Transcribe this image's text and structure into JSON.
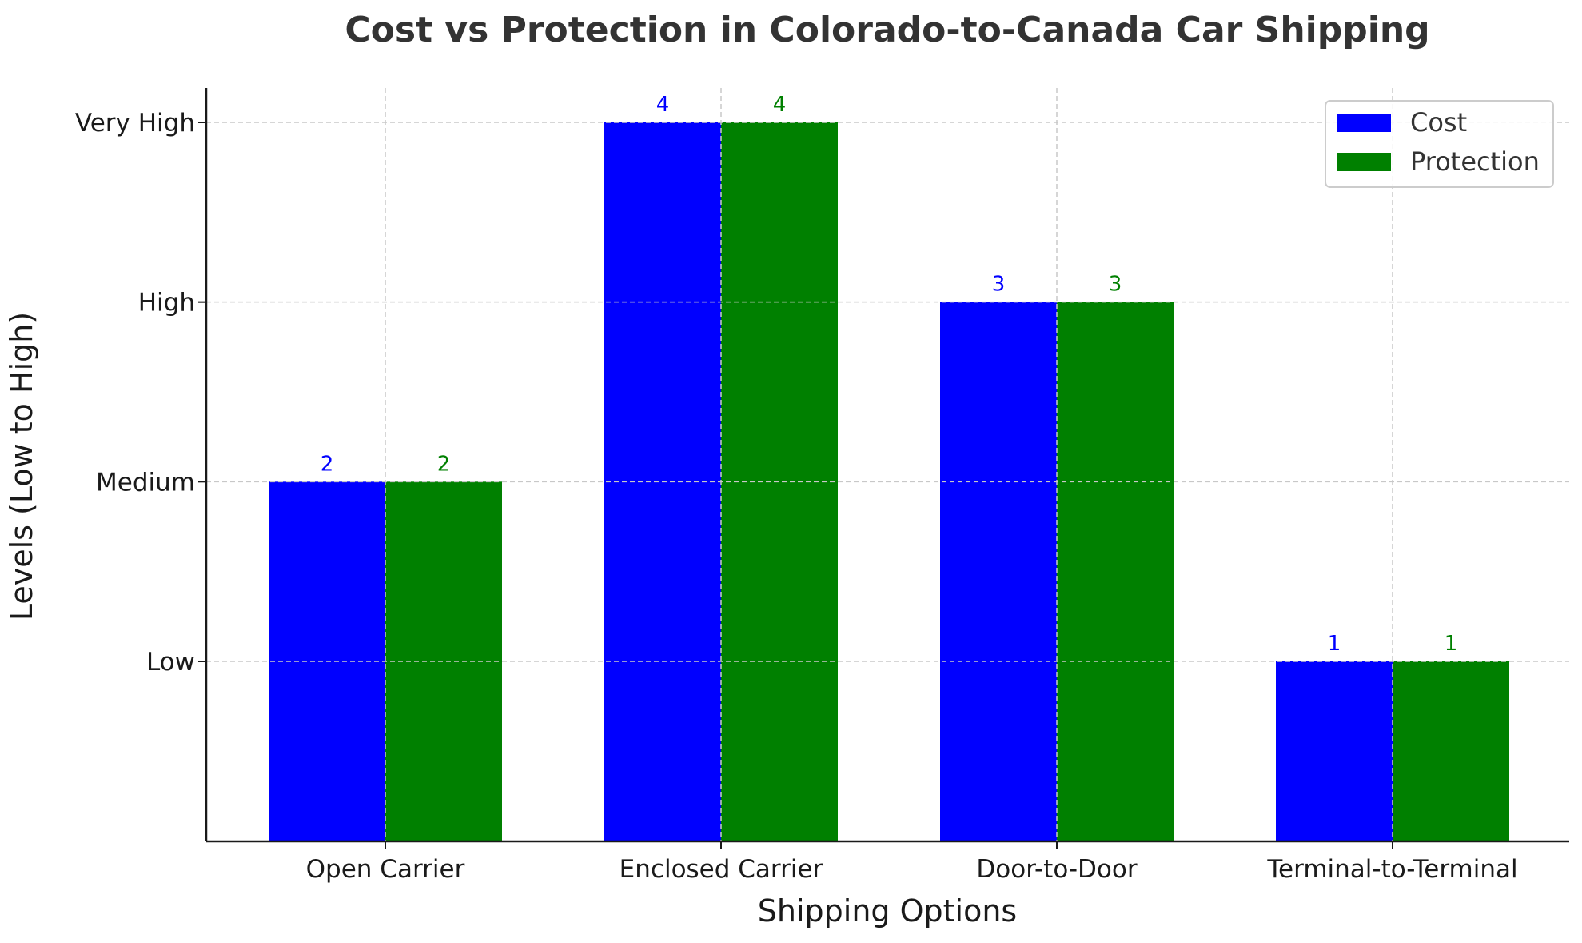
{
  "chart_data": {
    "type": "bar",
    "title": "Cost vs Protection in Colorado-to-Canada Car Shipping",
    "xlabel": "Shipping Options",
    "ylabel": "Levels (Low to High)",
    "categories": [
      "Open Carrier",
      "Enclosed Carrier",
      "Door-to-Door",
      "Terminal-to-Terminal"
    ],
    "series": [
      {
        "name": "Cost",
        "values": [
          2,
          4,
          3,
          1
        ],
        "color": "#0000ff"
      },
      {
        "name": "Protection",
        "values": [
          2,
          4,
          3,
          1
        ],
        "color": "#008000"
      }
    ],
    "yticks": [
      1,
      2,
      3,
      4
    ],
    "ytick_labels": [
      "Low",
      "Medium",
      "High",
      "Very High"
    ],
    "ylim": [
      0,
      4.2
    ],
    "grid": true,
    "legend_position": "top-right"
  }
}
